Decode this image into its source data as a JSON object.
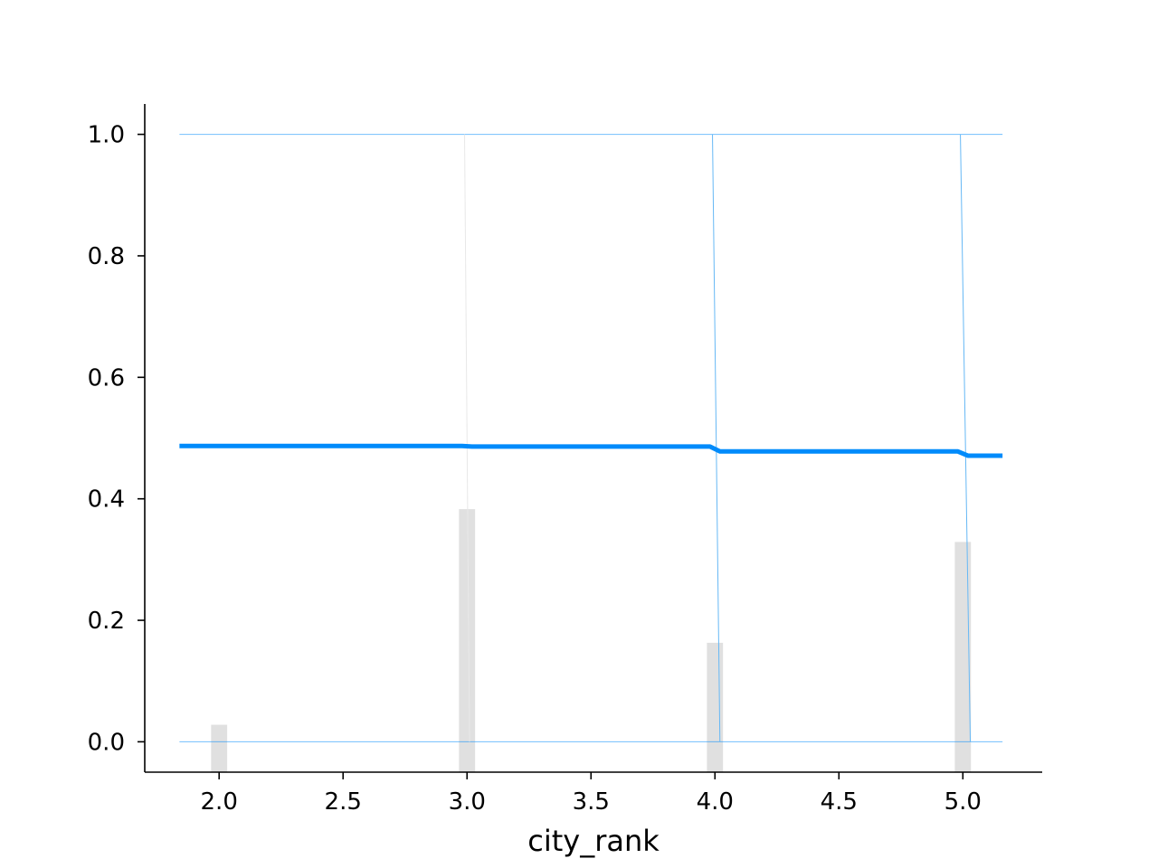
{
  "chart_data": {
    "type": "line",
    "title": "",
    "xlabel": "city_rank",
    "ylabel": "",
    "xlim": [
      1.7,
      5.32
    ],
    "ylim": [
      -0.05,
      1.05
    ],
    "xticks": [
      2.0,
      2.5,
      3.0,
      3.5,
      4.0,
      4.5,
      5.0
    ],
    "xtick_labels": [
      "2.0",
      "2.5",
      "3.0",
      "3.5",
      "4.0",
      "4.5",
      "5.0"
    ],
    "yticks": [
      0.0,
      0.2,
      0.4,
      0.6,
      0.8,
      1.0
    ],
    "ytick_labels": [
      "0.0",
      "0.2",
      "0.4",
      "0.6",
      "0.8",
      "1.0"
    ],
    "grid": false,
    "histogram": {
      "color": "#e0e0e0",
      "bin_width": 0.065,
      "x": [
        2.0,
        3.0,
        4.0,
        5.0
      ],
      "heights": [
        0.028,
        0.383,
        0.163,
        0.329
      ]
    },
    "series": [
      {
        "role": "average",
        "color": "#008bfb",
        "x": [
          1.84,
          2.98,
          3.02,
          3.98,
          4.02,
          4.98,
          5.02,
          5.16
        ],
        "y": [
          0.487,
          0.487,
          0.486,
          0.486,
          0.478,
          0.478,
          0.471,
          0.471
        ]
      },
      {
        "role": "individual",
        "color": "#008bfb",
        "x": [
          1.84,
          2.98,
          3.02,
          3.98,
          4.02,
          4.98,
          5.02,
          5.16
        ],
        "y": [
          1.0,
          1.0,
          1.0,
          1.0,
          1.0,
          1.0,
          1.0,
          1.0
        ]
      },
      {
        "role": "individual",
        "color": "#008bfb",
        "x": [
          1.84,
          2.98,
          3.02,
          3.98,
          4.02,
          4.98,
          5.02,
          5.16
        ],
        "y": [
          0.0,
          0.0,
          0.0,
          0.0,
          0.0,
          0.0,
          0.0,
          0.0
        ]
      }
    ],
    "transitions": [
      {
        "x_top": 2.99,
        "x_bottom": 3.01,
        "color": "#e8e8e8"
      },
      {
        "x_top": 3.99,
        "x_bottom": 4.02,
        "color": "#66b8f5"
      },
      {
        "x_top": 4.99,
        "x_bottom": 5.03,
        "color": "#66b8f5"
      }
    ]
  }
}
